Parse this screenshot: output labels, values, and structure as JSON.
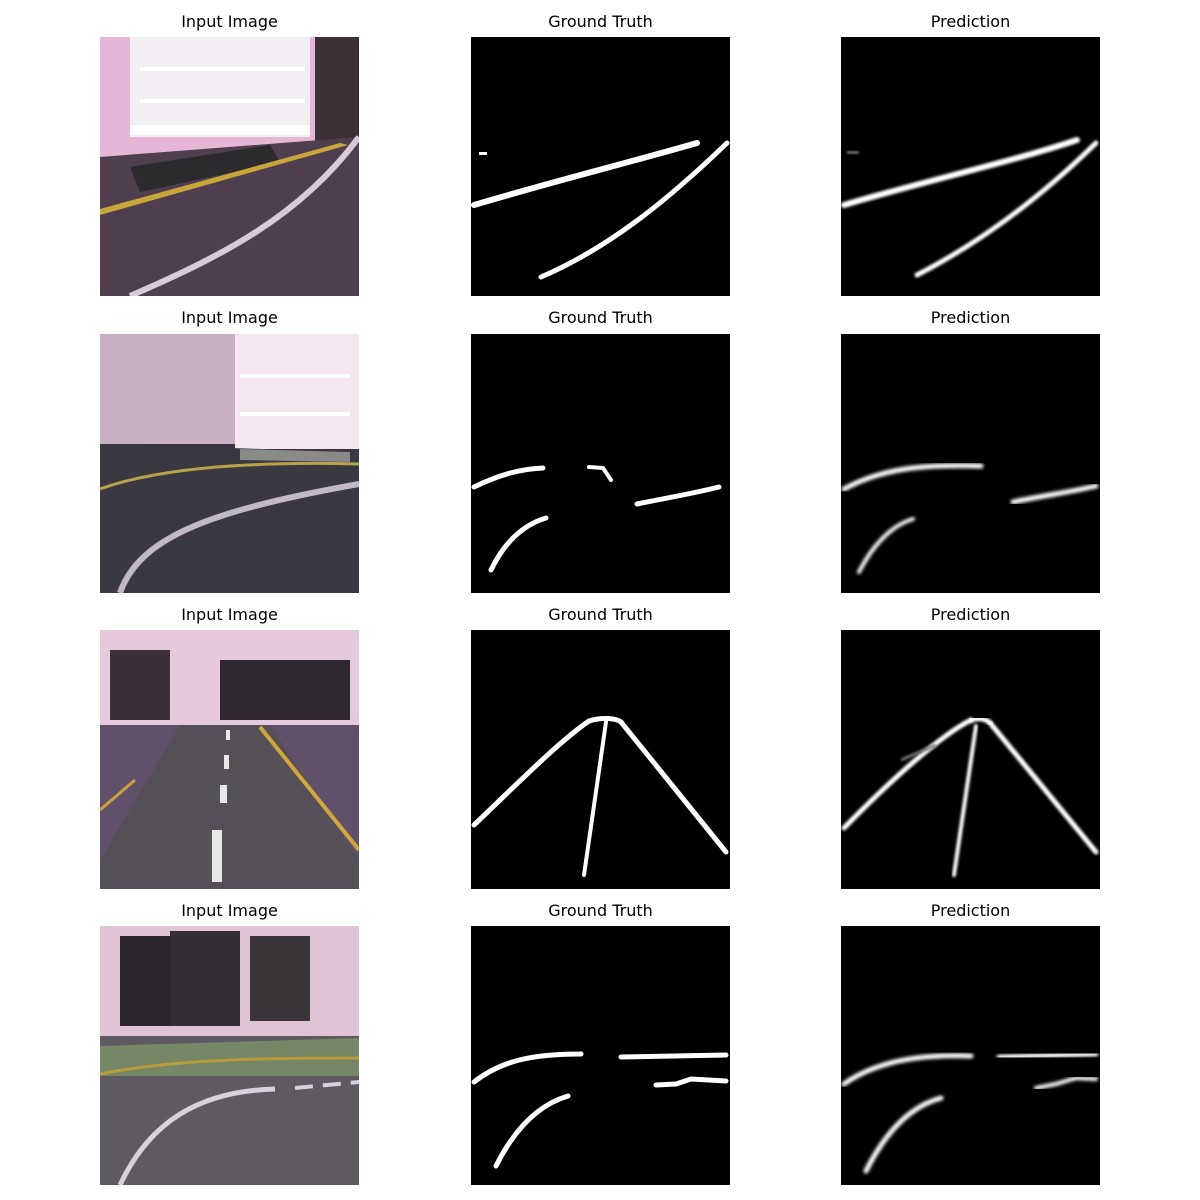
{
  "grid": {
    "rows": [
      {
        "input_title": "Input Image",
        "gt_title": "Ground Truth",
        "pred_title": "Prediction"
      },
      {
        "input_title": "Input Image",
        "gt_title": "Ground Truth",
        "pred_title": "Prediction"
      },
      {
        "input_title": "Input Image",
        "gt_title": "Ground Truth",
        "pred_title": "Prediction"
      },
      {
        "input_title": "Input Image",
        "gt_title": "Ground Truth",
        "pred_title": "Prediction"
      }
    ]
  },
  "colors": {
    "mask_background": "#000000",
    "mask_foreground": "#ffffff",
    "floor_tint": "#6a4b63",
    "wall_tint": "#e9b9d6",
    "lane_yellow": "#c9a63a"
  }
}
